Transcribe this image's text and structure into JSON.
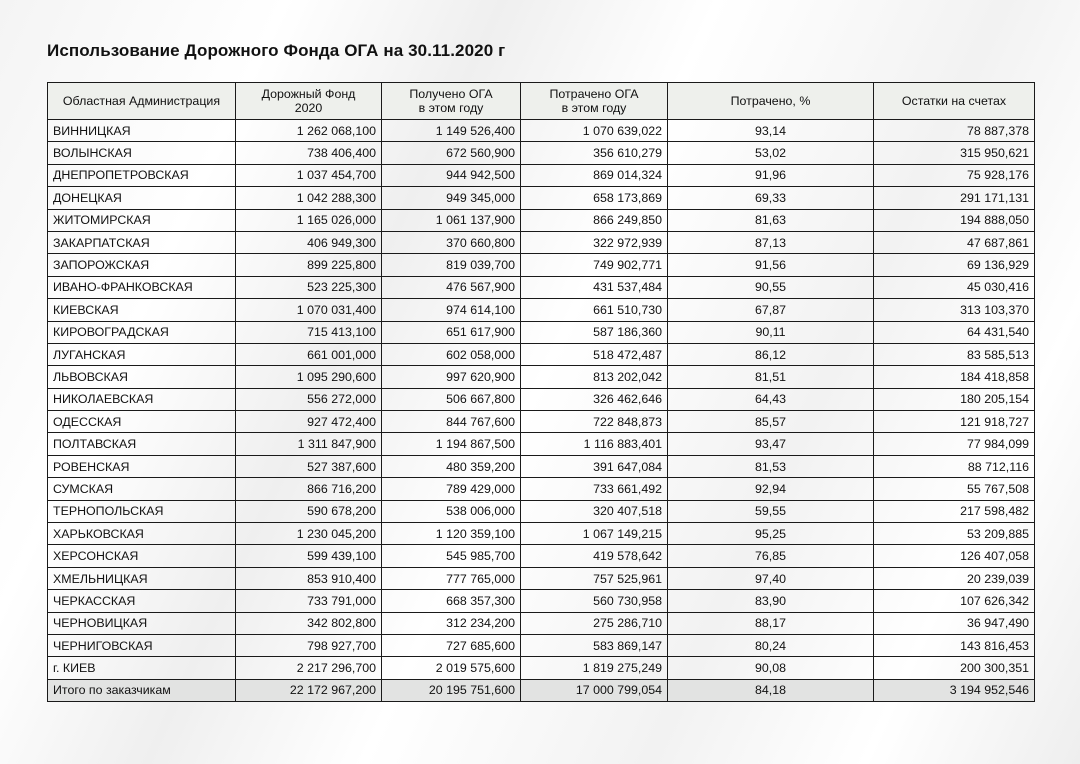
{
  "title": "Использование Дорожного Фонда ОГА на 30.11.2020 г",
  "table": {
    "headers": [
      [
        "Областная Администрация"
      ],
      [
        "Дорожный Фонд",
        "2020"
      ],
      [
        "Получено ОГА",
        "в этом году"
      ],
      [
        "Потрачено ОГА",
        "в этом году"
      ],
      [
        "Потрачено, %"
      ],
      [
        "Остатки на счетах"
      ]
    ],
    "rows": [
      [
        "ВИННИЦКАЯ",
        "1 262 068,100",
        "1 149 526,400",
        "1 070 639,022",
        "93,14",
        "78 887,378"
      ],
      [
        "ВОЛЫНСКАЯ",
        "738 406,400",
        "672 560,900",
        "356 610,279",
        "53,02",
        "315 950,621"
      ],
      [
        "ДНЕПРОПЕТРОВСКАЯ",
        "1 037 454,700",
        "944 942,500",
        "869 014,324",
        "91,96",
        "75 928,176"
      ],
      [
        "ДОНЕЦКАЯ",
        "1 042 288,300",
        "949 345,000",
        "658 173,869",
        "69,33",
        "291 171,131"
      ],
      [
        "ЖИТОМИРСКАЯ",
        "1 165 026,000",
        "1 061 137,900",
        "866 249,850",
        "81,63",
        "194 888,050"
      ],
      [
        "ЗАКАРПАТСКАЯ",
        "406 949,300",
        "370 660,800",
        "322 972,939",
        "87,13",
        "47 687,861"
      ],
      [
        "ЗАПОРОЖСКАЯ",
        "899 225,800",
        "819 039,700",
        "749 902,771",
        "91,56",
        "69 136,929"
      ],
      [
        "ИВАНО-ФРАНКОВСКАЯ",
        "523 225,300",
        "476 567,900",
        "431 537,484",
        "90,55",
        "45 030,416"
      ],
      [
        "КИЕВСКАЯ",
        "1 070 031,400",
        "974 614,100",
        "661 510,730",
        "67,87",
        "313 103,370"
      ],
      [
        "КИРОВОГРАДСКАЯ",
        "715 413,100",
        "651 617,900",
        "587 186,360",
        "90,11",
        "64 431,540"
      ],
      [
        "ЛУГАНСКАЯ",
        "661 001,000",
        "602 058,000",
        "518 472,487",
        "86,12",
        "83 585,513"
      ],
      [
        "ЛЬВОВСКАЯ",
        "1 095 290,600",
        "997 620,900",
        "813 202,042",
        "81,51",
        "184 418,858"
      ],
      [
        "НИКОЛАЕВСКАЯ",
        "556 272,000",
        "506 667,800",
        "326 462,646",
        "64,43",
        "180 205,154"
      ],
      [
        "ОДЕССКАЯ",
        "927 472,400",
        "844 767,600",
        "722 848,873",
        "85,57",
        "121 918,727"
      ],
      [
        "ПОЛТАВСКАЯ",
        "1 311 847,900",
        "1 194 867,500",
        "1 116 883,401",
        "93,47",
        "77 984,099"
      ],
      [
        "РОВЕНСКАЯ",
        "527 387,600",
        "480 359,200",
        "391 647,084",
        "81,53",
        "88 712,116"
      ],
      [
        "СУМСКАЯ",
        "866 716,200",
        "789 429,000",
        "733 661,492",
        "92,94",
        "55 767,508"
      ],
      [
        "ТЕРНОПОЛЬСКАЯ",
        "590 678,200",
        "538 006,000",
        "320 407,518",
        "59,55",
        "217 598,482"
      ],
      [
        "ХАРЬКОВСКАЯ",
        "1 230 045,200",
        "1 120 359,100",
        "1 067 149,215",
        "95,25",
        "53 209,885"
      ],
      [
        "ХЕРСОНСКАЯ",
        "599 439,100",
        "545 985,700",
        "419 578,642",
        "76,85",
        "126 407,058"
      ],
      [
        "ХМЕЛЬНИЦКАЯ",
        "853 910,400",
        "777 765,000",
        "757 525,961",
        "97,40",
        "20 239,039"
      ],
      [
        "ЧЕРКАССКАЯ",
        "733 791,000",
        "668 357,300",
        "560 730,958",
        "83,90",
        "107 626,342"
      ],
      [
        "ЧЕРНОВИЦКАЯ",
        "342 802,800",
        "312 234,200",
        "275 286,710",
        "88,17",
        "36 947,490"
      ],
      [
        "ЧЕРНИГОВСКАЯ",
        "798 927,700",
        "727 685,600",
        "583 869,147",
        "80,24",
        "143 816,453"
      ],
      [
        "г. КИЕВ",
        "2 217 296,700",
        "2 019 575,600",
        "1 819 275,249",
        "90,08",
        "200 300,351"
      ]
    ],
    "total": [
      "Итого по заказчикам",
      "22 172 967,200",
      "20 195 751,600",
      "17 000 799,054",
      "84,18",
      "3 194 952,546"
    ]
  },
  "colors": {
    "header_bg": "#eef0ec",
    "total_bg": "#e2e3e2",
    "border": "#1a1a1a"
  }
}
